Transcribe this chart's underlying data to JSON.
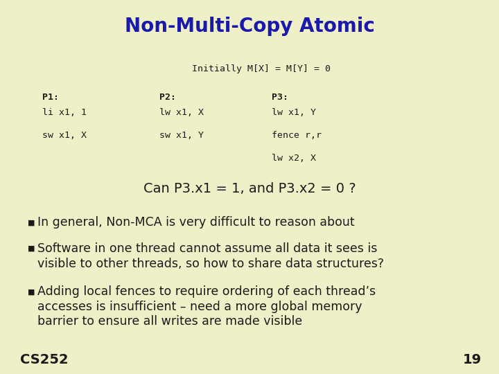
{
  "bg_color": "#f0f0c8",
  "title": "Non-Multi-Copy Atomic",
  "title_color": "#1a1aaa",
  "title_fontsize": 20,
  "mono_color": "#1a1a1a",
  "body_color": "#1a1a1a",
  "initially_text": "Initially M[X] = M[Y] = 0",
  "p1_label": "P1:",
  "p1_lines": [
    "li x1, 1",
    "sw x1, X"
  ],
  "p2_label": "P2:",
  "p2_lines": [
    "lw x1, X",
    "sw x1, Y"
  ],
  "p3_label": "P3:",
  "p3_lines": [
    "lw x1, Y",
    "fence r,r",
    "lw x2, X"
  ],
  "can_text": "Can P3.x1 = 1, and P3.x2 = 0 ?",
  "bullet1": "In general, Non-MCA is very difficult to reason about",
  "bullet2a": "Software in one thread cannot assume all data it sees is",
  "bullet2b": "visible to other threads, so how to share data structures?",
  "bullet3a": "Adding local fences to require ordering of each thread’s",
  "bullet3b": "accesses is insufficient – need a more global memory",
  "bullet3c": "barrier to ensure all writes are made visible",
  "cs252": "CS252",
  "page": "19",
  "p1x": 0.085,
  "p2x": 0.32,
  "p3x": 0.545,
  "mono_fs": 9.5,
  "body_fs": 12.5,
  "can_fs": 14,
  "cs252_fs": 14
}
